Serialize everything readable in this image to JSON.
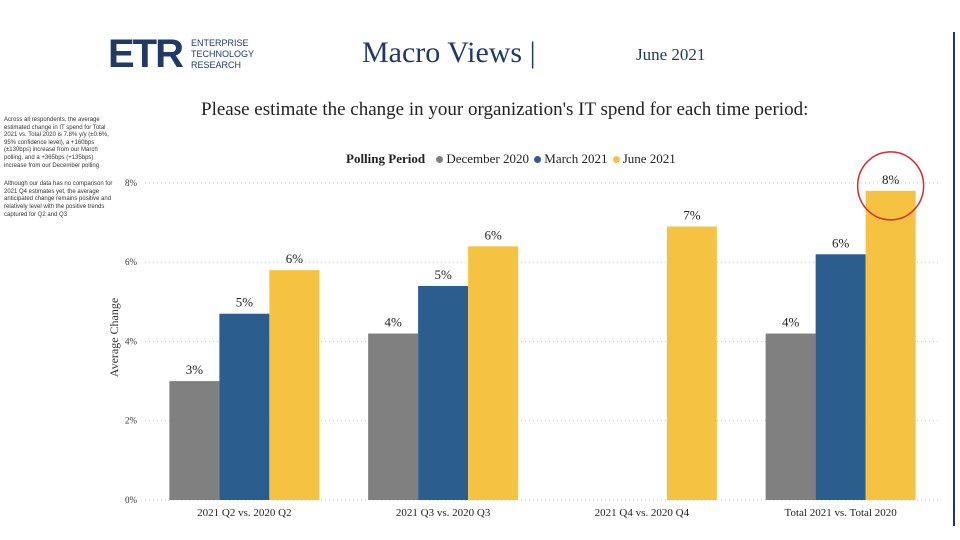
{
  "header": {
    "logo_mark": "ETR",
    "logo_lines": [
      "ENTERPRISE",
      "TECHNOLOGY",
      "RESEARCH"
    ],
    "title": "Macro Views |",
    "date": "June 2021"
  },
  "sidebar": {
    "paragraphs": [
      "Across all respondents, the average estimated change in IT spend for Total 2021 vs. Total 2020 is 7.8% y/y (±0.6%, 95% confidence level), a +160bps (±130bps) increase from our March polling, and a +365bps (+135bps) increase from our December polling",
      "Although our data has no comparison for 2021 Q4 estimates yet, the average anticipated change remains positive and relatively level with the positive trends captured for Q2 and Q3"
    ]
  },
  "chart_data": {
    "type": "bar",
    "title": "Please estimate the change in your organization's IT spend for each time period:",
    "ylabel": "Average Change",
    "ylim": [
      0,
      8.2
    ],
    "yticks": [
      0,
      2,
      4,
      6,
      8
    ],
    "ytick_labels": [
      "0%",
      "2%",
      "4%",
      "6%",
      "8%"
    ],
    "grid": true,
    "legend": {
      "title": "Polling Period",
      "position": "top"
    },
    "categories": [
      "2021 Q2 vs. 2020 Q2",
      "2021 Q3 vs. 2020 Q3",
      "2021 Q4 vs. 2020 Q4",
      "Total 2021 vs. Total 2020"
    ],
    "series": [
      {
        "name": "December 2020",
        "color": "#808080",
        "values": [
          3.0,
          4.2,
          null,
          4.2
        ],
        "labels": [
          "3%",
          "4%",
          "",
          "4%"
        ]
      },
      {
        "name": "March 2021",
        "color": "#2b5d8e",
        "values": [
          4.7,
          5.4,
          null,
          6.2
        ],
        "labels": [
          "5%",
          "5%",
          "",
          "6%"
        ]
      },
      {
        "name": "June 2021",
        "color": "#f5c242",
        "values": [
          5.8,
          6.4,
          6.9,
          7.8
        ],
        "labels": [
          "6%",
          "6%",
          "7%",
          "8%"
        ]
      }
    ],
    "highlight": {
      "category_index": 3,
      "series_index": 2,
      "color": "#d92b2b"
    }
  }
}
